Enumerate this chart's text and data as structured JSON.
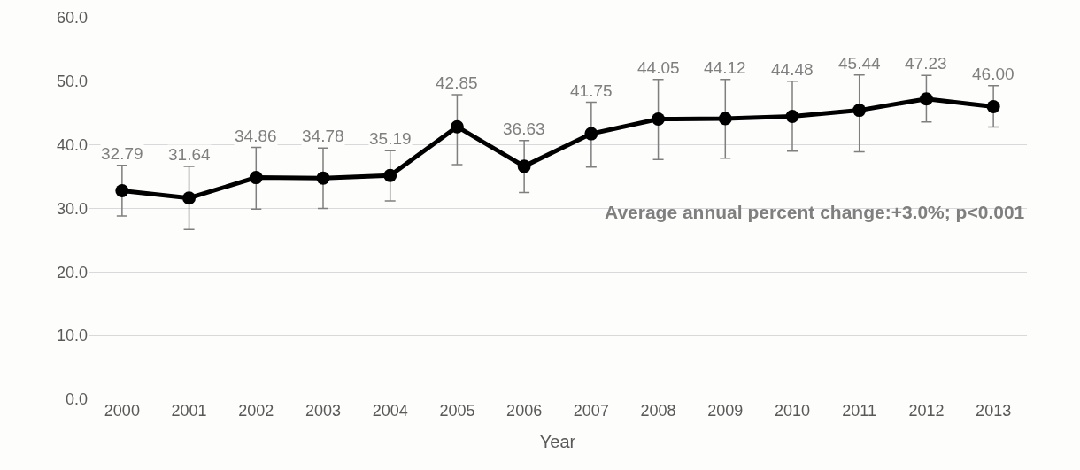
{
  "chart_data": {
    "type": "line",
    "xlabel": "Year",
    "categories": [
      "2000",
      "2001",
      "2002",
      "2003",
      "2004",
      "2005",
      "2006",
      "2007",
      "2008",
      "2009",
      "2010",
      "2011",
      "2012",
      "2013"
    ],
    "series": [
      {
        "color": "#000000",
        "values": [
          32.79,
          31.64,
          34.86,
          34.78,
          35.19,
          42.85,
          36.63,
          41.75,
          44.05,
          44.12,
          44.48,
          45.44,
          47.23,
          46.0
        ],
        "value_labels": [
          "32.79",
          "31.64",
          "34.86",
          "34.78",
          "35.19",
          "42.85",
          "36.63",
          "41.75",
          "44.05",
          "44.12",
          "44.48",
          "45.44",
          "47.23",
          "46.00"
        ],
        "errors": [
          [
            28.8,
            36.8
          ],
          [
            26.7,
            36.6
          ],
          [
            29.9,
            39.6
          ],
          [
            30.0,
            39.5
          ],
          [
            31.2,
            39.1
          ],
          [
            36.9,
            47.9
          ],
          [
            32.5,
            40.7
          ],
          [
            36.5,
            46.7
          ],
          [
            37.7,
            50.3
          ],
          [
            37.9,
            50.3
          ],
          [
            39.0,
            50.0
          ],
          [
            38.9,
            51.0
          ],
          [
            43.6,
            50.9
          ],
          [
            42.8,
            49.3
          ]
        ]
      }
    ],
    "ylim": [
      0,
      60
    ],
    "yticks": [
      {
        "value": 0,
        "label": "0.0"
      },
      {
        "value": 10,
        "label": "10.0"
      },
      {
        "value": 20,
        "label": "20.0"
      },
      {
        "value": 30,
        "label": "30.0"
      },
      {
        "value": 40,
        "label": "40.0"
      },
      {
        "value": 50,
        "label": "50.0"
      },
      {
        "value": 60,
        "label": "60.0"
      }
    ],
    "grid": "y",
    "marker": "circle",
    "line_style": "solid",
    "annotations": [
      "Average annual percent change:+3.0%; p<0.001"
    ]
  }
}
